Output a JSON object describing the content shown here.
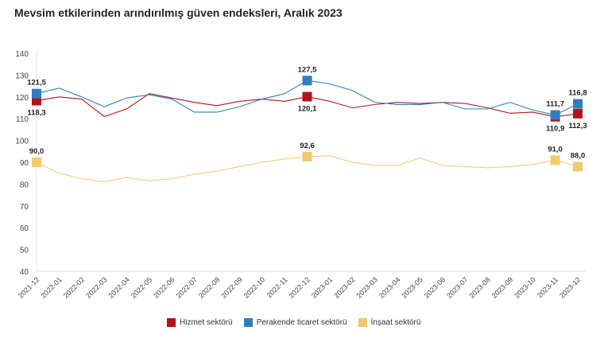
{
  "chart_data": {
    "type": "line",
    "title": "Mevsim etkilerinden arındırılmış güven endeksleri, Aralık 2023",
    "xlabel": "",
    "ylabel": "",
    "ylim": [
      40,
      140
    ],
    "yticks": [
      40,
      50,
      60,
      70,
      80,
      90,
      100,
      110,
      120,
      130,
      140
    ],
    "grid": false,
    "legend_position": "bottom",
    "categories": [
      "2021-12",
      "2022-01",
      "2022-02",
      "2022-03",
      "2022-04",
      "2022-05",
      "2022-06",
      "2022-07",
      "2022-08",
      "2022-09",
      "2022-10",
      "2022-11",
      "2022-12",
      "2023-01",
      "2023-02",
      "2023-03",
      "2023-04",
      "2023-05",
      "2023-06",
      "2023-07",
      "2023-08",
      "2023-09",
      "2023-10",
      "2023-11",
      "2023-12"
    ],
    "series": [
      {
        "name": "Hizmet sektörü",
        "color": "#b5121b",
        "values": [
          118.3,
          120,
          119,
          111,
          114.5,
          121.5,
          119.5,
          117.5,
          116,
          118,
          119,
          118,
          120.1,
          118,
          115,
          116.5,
          117.5,
          117,
          117.5,
          117,
          115,
          112.5,
          113,
          110.9,
          112.3
        ],
        "labels": {
          "0": "118,3",
          "12": "120,1",
          "23": "110,9",
          "24": "112,3"
        }
      },
      {
        "name": "Perakende ticaret sektörü",
        "color": "#2e7ebf",
        "values": [
          121.5,
          124,
          120,
          115.5,
          119.5,
          121,
          119,
          113,
          113,
          115.5,
          119,
          121.5,
          127.5,
          126,
          123,
          117.5,
          116.5,
          116.5,
          117.5,
          114.5,
          114.5,
          117.5,
          114,
          111.7,
          116.8
        ],
        "labels": {
          "0": "121,5",
          "12": "127,5",
          "23": "111,7",
          "24": "116,8"
        }
      },
      {
        "name": "İnşaat sektörü",
        "color": "#f2c96b",
        "values": [
          90.0,
          85,
          82.5,
          81,
          83,
          81.5,
          82.5,
          84.5,
          86,
          88,
          90,
          91.5,
          92.6,
          93,
          90,
          88.5,
          88.5,
          92,
          88.5,
          88,
          87.5,
          88,
          89,
          91.0,
          88.0
        ],
        "labels": {
          "0": "90,0",
          "12": "92,6",
          "23": "91,0",
          "24": "88,0"
        }
      }
    ]
  }
}
